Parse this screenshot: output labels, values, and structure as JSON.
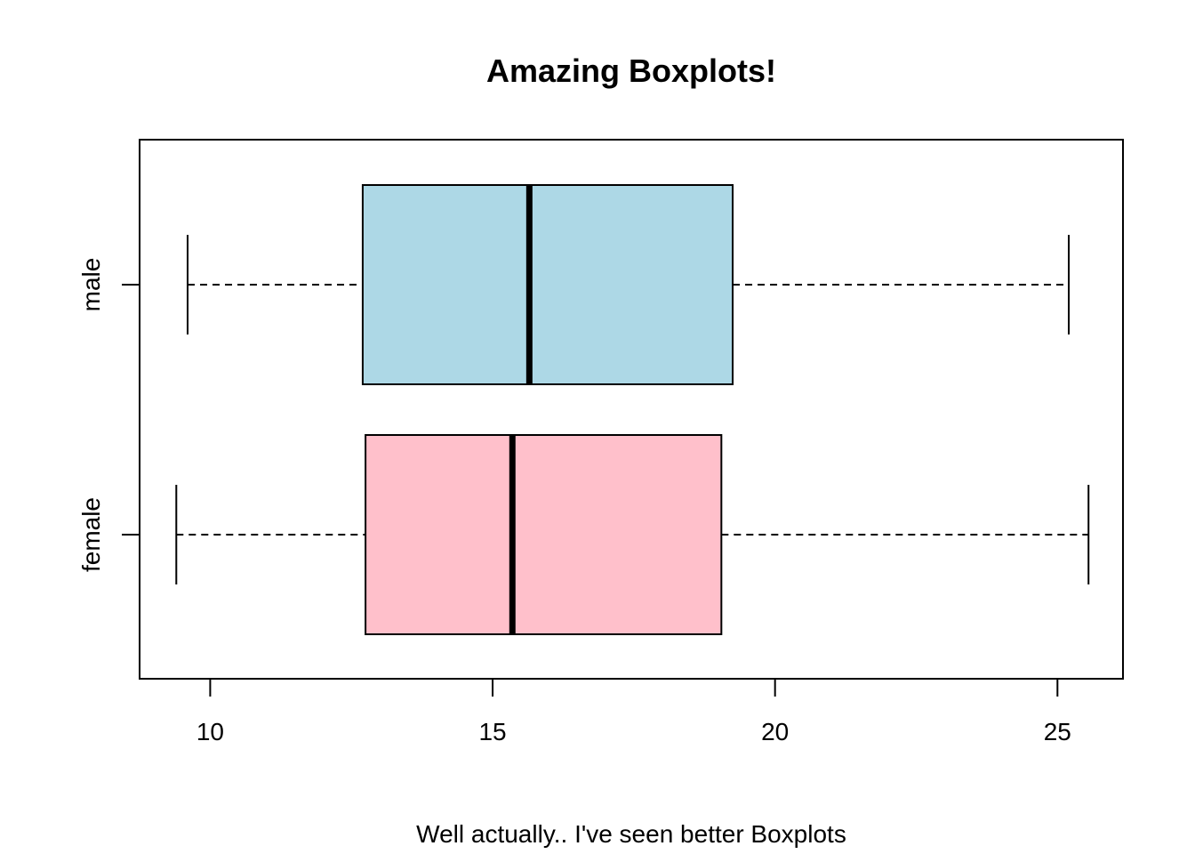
{
  "chart_data": {
    "type": "boxplot",
    "orientation": "horizontal",
    "title": "Amazing Boxplots!",
    "xlabel": "Well actually.. I've seen better Boxplots",
    "ylabel": "",
    "xlim": [
      8.75,
      26.16
    ],
    "xticks": [
      10,
      15,
      20,
      25
    ],
    "categories": [
      "female",
      "male"
    ],
    "series": [
      {
        "name": "female",
        "min": 9.4,
        "q1": 12.75,
        "median": 15.35,
        "q3": 19.05,
        "max": 25.55,
        "color": "#ffc0cb"
      },
      {
        "name": "male",
        "min": 9.6,
        "q1": 12.7,
        "median": 15.65,
        "q3": 19.25,
        "max": 25.2,
        "color": "#add8e6"
      }
    ]
  }
}
